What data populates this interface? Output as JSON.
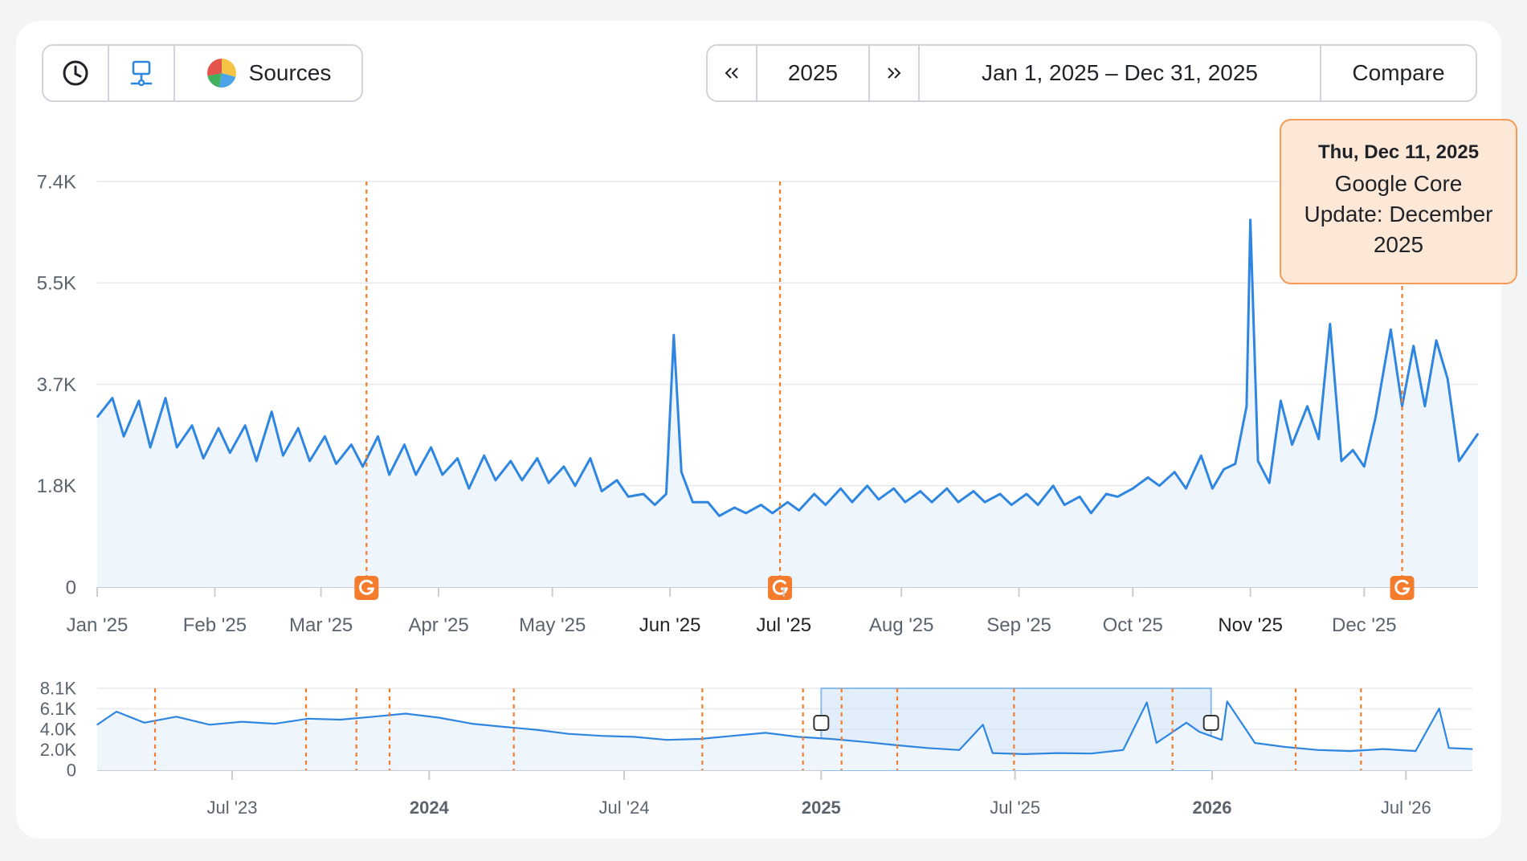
{
  "toolbar": {
    "sources_label": "Sources",
    "year": "2025",
    "prev_icon": "double-chevron-left-icon",
    "next_icon": "double-chevron-right-icon",
    "date_range": "Jan 1, 2025 – Dec 31, 2025",
    "compare_label": "Compare"
  },
  "tooltip": {
    "date": "Thu, Dec 11, 2025",
    "text": "Google Core Update: December 2025"
  },
  "colors": {
    "line": "#2f86e0",
    "area": "#eef5fd",
    "marker": "#f47c2c",
    "grid": "#e6e8eb",
    "brush": "#cfe3f7"
  },
  "chart_data": [
    {
      "type": "area",
      "title": "",
      "y_ticks": [
        "7.4K",
        "5.5K",
        "3.7K",
        "1.8K",
        "0"
      ],
      "ylim": [
        0,
        7400
      ],
      "x_ticks": [
        "Jan '25",
        "Feb '25",
        "Mar '25",
        "Apr '25",
        "May '25",
        "Jun '25",
        "Jul '25",
        "Aug '25",
        "Sep '25",
        "Oct '25",
        "Nov '25",
        "Dec '25"
      ],
      "x_tick_bold": [
        false,
        false,
        false,
        false,
        false,
        true,
        true,
        false,
        false,
        false,
        true,
        false
      ],
      "xlim": [
        "2025-01-01",
        "2025-12-31"
      ],
      "grid": true,
      "series": [
        {
          "points": [
            [
              "2025-01-01",
              3100
            ],
            [
              "2025-01-05",
              3450
            ],
            [
              "2025-01-08",
              2750
            ],
            [
              "2025-01-12",
              3400
            ],
            [
              "2025-01-15",
              2550
            ],
            [
              "2025-01-19",
              3450
            ],
            [
              "2025-01-22",
              2550
            ],
            [
              "2025-01-26",
              2950
            ],
            [
              "2025-01-29",
              2350
            ],
            [
              "2025-02-02",
              2900
            ],
            [
              "2025-02-05",
              2450
            ],
            [
              "2025-02-09",
              2950
            ],
            [
              "2025-02-12",
              2300
            ],
            [
              "2025-02-16",
              3200
            ],
            [
              "2025-02-19",
              2400
            ],
            [
              "2025-02-23",
              2900
            ],
            [
              "2025-02-26",
              2300
            ],
            [
              "2025-03-02",
              2750
            ],
            [
              "2025-03-05",
              2250
            ],
            [
              "2025-03-09",
              2600
            ],
            [
              "2025-03-12",
              2200
            ],
            [
              "2025-03-16",
              2750
            ],
            [
              "2025-03-19",
              2050
            ],
            [
              "2025-03-23",
              2600
            ],
            [
              "2025-03-26",
              2050
            ],
            [
              "2025-03-30",
              2550
            ],
            [
              "2025-04-02",
              2050
            ],
            [
              "2025-04-06",
              2350
            ],
            [
              "2025-04-09",
              1800
            ],
            [
              "2025-04-13",
              2400
            ],
            [
              "2025-04-16",
              1950
            ],
            [
              "2025-04-20",
              2300
            ],
            [
              "2025-04-23",
              1950
            ],
            [
              "2025-04-27",
              2350
            ],
            [
              "2025-04-30",
              1900
            ],
            [
              "2025-05-04",
              2200
            ],
            [
              "2025-05-07",
              1850
            ],
            [
              "2025-05-11",
              2350
            ],
            [
              "2025-05-14",
              1750
            ],
            [
              "2025-05-18",
              1950
            ],
            [
              "2025-05-21",
              1650
            ],
            [
              "2025-05-25",
              1700
            ],
            [
              "2025-05-28",
              1500
            ],
            [
              "2025-05-31",
              1700
            ],
            [
              "2025-06-02",
              4600
            ],
            [
              "2025-06-04",
              2100
            ],
            [
              "2025-06-07",
              1550
            ],
            [
              "2025-06-11",
              1550
            ],
            [
              "2025-06-14",
              1300
            ],
            [
              "2025-06-18",
              1450
            ],
            [
              "2025-06-21",
              1350
            ],
            [
              "2025-06-25",
              1500
            ],
            [
              "2025-06-28",
              1350
            ],
            [
              "2025-07-02",
              1550
            ],
            [
              "2025-07-05",
              1400
            ],
            [
              "2025-07-09",
              1700
            ],
            [
              "2025-07-12",
              1500
            ],
            [
              "2025-07-16",
              1800
            ],
            [
              "2025-07-19",
              1550
            ],
            [
              "2025-07-23",
              1850
            ],
            [
              "2025-07-26",
              1600
            ],
            [
              "2025-07-30",
              1800
            ],
            [
              "2025-08-02",
              1550
            ],
            [
              "2025-08-06",
              1750
            ],
            [
              "2025-08-09",
              1550
            ],
            [
              "2025-08-13",
              1800
            ],
            [
              "2025-08-16",
              1550
            ],
            [
              "2025-08-20",
              1750
            ],
            [
              "2025-08-23",
              1550
            ],
            [
              "2025-08-27",
              1700
            ],
            [
              "2025-08-30",
              1500
            ],
            [
              "2025-09-03",
              1700
            ],
            [
              "2025-09-06",
              1500
            ],
            [
              "2025-09-10",
              1850
            ],
            [
              "2025-09-13",
              1500
            ],
            [
              "2025-09-17",
              1650
            ],
            [
              "2025-09-20",
              1350
            ],
            [
              "2025-09-24",
              1700
            ],
            [
              "2025-09-27",
              1650
            ],
            [
              "2025-10-01",
              1800
            ],
            [
              "2025-10-05",
              2000
            ],
            [
              "2025-10-08",
              1850
            ],
            [
              "2025-10-12",
              2100
            ],
            [
              "2025-10-15",
              1800
            ],
            [
              "2025-10-19",
              2400
            ],
            [
              "2025-10-22",
              1800
            ],
            [
              "2025-10-25",
              2150
            ],
            [
              "2025-10-28",
              2250
            ],
            [
              "2025-10-31",
              3300
            ],
            [
              "2025-11-01",
              6700
            ],
            [
              "2025-11-03",
              2300
            ],
            [
              "2025-11-06",
              1900
            ],
            [
              "2025-11-09",
              3400
            ],
            [
              "2025-11-12",
              2600
            ],
            [
              "2025-11-16",
              3300
            ],
            [
              "2025-11-19",
              2700
            ],
            [
              "2025-11-22",
              4800
            ],
            [
              "2025-11-25",
              2300
            ],
            [
              "2025-11-28",
              2500
            ],
            [
              "2025-12-01",
              2200
            ],
            [
              "2025-12-04",
              3100
            ],
            [
              "2025-12-08",
              4700
            ],
            [
              "2025-12-11",
              3300
            ],
            [
              "2025-12-14",
              4400
            ],
            [
              "2025-12-17",
              3300
            ],
            [
              "2025-12-20",
              4500
            ],
            [
              "2025-12-23",
              3800
            ],
            [
              "2025-12-26",
              2300
            ],
            [
              "2025-12-31",
              2800
            ]
          ]
        }
      ],
      "annotations": [
        {
          "date": "2025-03-13",
          "icon": "google-update-icon"
        },
        {
          "date": "2025-06-30",
          "icon": "google-update-icon"
        },
        {
          "date": "2025-12-11",
          "icon": "google-update-icon"
        }
      ]
    },
    {
      "type": "area",
      "title": "",
      "y_ticks": [
        "8.1K",
        "6.1K",
        "4.0K",
        "2.0K",
        "0"
      ],
      "ylim": [
        0,
        8100
      ],
      "x_ticks": [
        "Jul '23",
        "2024",
        "Jul '24",
        "2025",
        "Jul '25",
        "2026",
        "Jul '26"
      ],
      "x_tick_bold": [
        false,
        true,
        false,
        true,
        false,
        true,
        false
      ],
      "xlim": [
        "2023-02-25",
        "2026-09-01"
      ],
      "brush": [
        "2025-01-01",
        "2025-12-31"
      ],
      "series": [
        {
          "points": [
            [
              "2023-02-25",
              4500
            ],
            [
              "2023-03-15",
              5800
            ],
            [
              "2023-04-10",
              4700
            ],
            [
              "2023-05-10",
              5300
            ],
            [
              "2023-06-10",
              4500
            ],
            [
              "2023-07-10",
              4800
            ],
            [
              "2023-08-10",
              4600
            ],
            [
              "2023-09-10",
              5100
            ],
            [
              "2023-10-10",
              5000
            ],
            [
              "2023-11-10",
              5300
            ],
            [
              "2023-12-10",
              5600
            ],
            [
              "2024-01-10",
              5200
            ],
            [
              "2024-02-10",
              4600
            ],
            [
              "2024-03-10",
              4300
            ],
            [
              "2024-04-10",
              4000
            ],
            [
              "2024-05-10",
              3600
            ],
            [
              "2024-06-10",
              3400
            ],
            [
              "2024-07-10",
              3300
            ],
            [
              "2024-08-10",
              3000
            ],
            [
              "2024-09-10",
              3100
            ],
            [
              "2024-10-10",
              3400
            ],
            [
              "2024-11-10",
              3700
            ],
            [
              "2024-12-10",
              3300
            ],
            [
              "2025-01-10",
              3100
            ],
            [
              "2025-02-10",
              2800
            ],
            [
              "2025-03-10",
              2500
            ],
            [
              "2025-04-10",
              2200
            ],
            [
              "2025-05-10",
              2000
            ],
            [
              "2025-06-01",
              4500
            ],
            [
              "2025-06-10",
              1700
            ],
            [
              "2025-07-10",
              1600
            ],
            [
              "2025-08-10",
              1700
            ],
            [
              "2025-09-10",
              1650
            ],
            [
              "2025-10-10",
              2000
            ],
            [
              "2025-11-01",
              6700
            ],
            [
              "2025-11-10",
              2700
            ],
            [
              "2025-12-08",
              4700
            ],
            [
              "2025-12-20",
              3800
            ],
            [
              "2026-01-10",
              3000
            ],
            [
              "2026-01-15",
              6800
            ],
            [
              "2026-02-10",
              2700
            ],
            [
              "2026-03-10",
              2300
            ],
            [
              "2026-04-10",
              2000
            ],
            [
              "2026-05-10",
              1900
            ],
            [
              "2026-06-10",
              2100
            ],
            [
              "2026-07-10",
              1900
            ],
            [
              "2026-08-01",
              6100
            ],
            [
              "2026-08-10",
              2200
            ],
            [
              "2026-09-01",
              2100
            ]
          ]
        }
      ],
      "annotations": [
        "2023-04-20",
        "2023-09-08",
        "2023-10-25",
        "2023-11-25",
        "2024-03-20",
        "2024-09-12",
        "2024-12-15",
        "2025-01-20",
        "2025-03-13",
        "2025-06-30",
        "2025-11-25",
        "2026-03-20",
        "2026-05-20"
      ]
    }
  ]
}
